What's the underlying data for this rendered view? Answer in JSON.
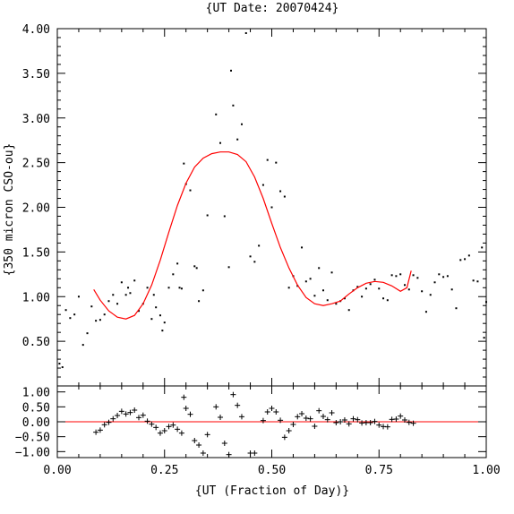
{
  "chart_data": [
    {
      "type": "scatter",
      "title": "{UT Date: 20070424}",
      "xlabel": "",
      "ylabel": "{350 micron CSO-ou}",
      "xlim": [
        0.0,
        1.0
      ],
      "ylim": [
        0.0,
        4.0
      ],
      "ytick_labels": [
        "0.50",
        "1.00",
        "1.50",
        "2.00",
        "2.50",
        "3.00",
        "3.50",
        "4.00"
      ],
      "yticks": [
        0.5,
        1.0,
        1.5,
        2.0,
        2.5,
        3.0,
        3.5,
        4.0
      ],
      "grid": false,
      "series": [
        {
          "kind": "points",
          "color": "#000000",
          "points": [
            [
              0.005,
              0.25
            ],
            [
              0.012,
              0.21
            ],
            [
              0.02,
              0.85
            ],
            [
              0.03,
              0.76
            ],
            [
              0.04,
              0.8
            ],
            [
              0.05,
              1.0
            ],
            [
              0.06,
              0.46
            ],
            [
              0.07,
              0.59
            ],
            [
              0.08,
              0.89
            ],
            [
              0.09,
              0.73
            ],
            [
              0.1,
              0.74
            ],
            [
              0.11,
              0.8
            ],
            [
              0.12,
              0.95
            ],
            [
              0.13,
              1.02
            ],
            [
              0.14,
              0.92
            ],
            [
              0.15,
              1.16
            ],
            [
              0.16,
              1.02
            ],
            [
              0.165,
              1.1
            ],
            [
              0.17,
              1.04
            ],
            [
              0.18,
              1.18
            ],
            [
              0.19,
              0.84
            ],
            [
              0.2,
              0.92
            ],
            [
              0.21,
              1.1
            ],
            [
              0.22,
              0.75
            ],
            [
              0.225,
              1.02
            ],
            [
              0.23,
              0.88
            ],
            [
              0.24,
              0.79
            ],
            [
              0.245,
              0.62
            ],
            [
              0.25,
              0.71
            ],
            [
              0.26,
              1.1
            ],
            [
              0.27,
              1.25
            ],
            [
              0.28,
              1.37
            ],
            [
              0.285,
              1.1
            ],
            [
              0.29,
              1.09
            ],
            [
              0.295,
              2.49
            ],
            [
              0.3,
              2.26
            ],
            [
              0.31,
              2.19
            ],
            [
              0.32,
              1.34
            ],
            [
              0.325,
              1.32
            ],
            [
              0.33,
              0.95
            ],
            [
              0.34,
              1.07
            ],
            [
              0.35,
              1.91
            ],
            [
              0.37,
              3.04
            ],
            [
              0.38,
              2.72
            ],
            [
              0.39,
              1.9
            ],
            [
              0.4,
              1.33
            ],
            [
              0.405,
              3.53
            ],
            [
              0.41,
              3.14
            ],
            [
              0.42,
              2.76
            ],
            [
              0.43,
              2.93
            ],
            [
              0.44,
              3.95
            ],
            [
              0.45,
              1.45
            ],
            [
              0.46,
              1.39
            ],
            [
              0.47,
              1.57
            ],
            [
              0.48,
              2.25
            ],
            [
              0.49,
              2.53
            ],
            [
              0.5,
              2.0
            ],
            [
              0.51,
              2.5
            ],
            [
              0.52,
              2.18
            ],
            [
              0.53,
              2.12
            ],
            [
              0.54,
              1.1
            ],
            [
              0.55,
              1.23
            ],
            [
              0.56,
              1.12
            ],
            [
              0.57,
              1.55
            ],
            [
              0.58,
              1.17
            ],
            [
              0.59,
              1.2
            ],
            [
              0.6,
              1.01
            ],
            [
              0.61,
              1.32
            ],
            [
              0.62,
              1.07
            ],
            [
              0.63,
              0.96
            ],
            [
              0.64,
              1.27
            ],
            [
              0.65,
              0.92
            ],
            [
              0.66,
              0.95
            ],
            [
              0.67,
              0.98
            ],
            [
              0.68,
              0.85
            ],
            [
              0.69,
              1.07
            ],
            [
              0.7,
              1.11
            ],
            [
              0.71,
              1.0
            ],
            [
              0.72,
              1.09
            ],
            [
              0.73,
              1.14
            ],
            [
              0.74,
              1.19
            ],
            [
              0.75,
              1.09
            ],
            [
              0.76,
              0.98
            ],
            [
              0.77,
              0.96
            ],
            [
              0.78,
              1.24
            ],
            [
              0.79,
              1.23
            ],
            [
              0.8,
              1.25
            ],
            [
              0.81,
              1.13
            ],
            [
              0.82,
              1.08
            ],
            [
              0.83,
              1.24
            ],
            [
              0.84,
              1.21
            ],
            [
              0.85,
              1.06
            ],
            [
              0.86,
              0.83
            ],
            [
              0.87,
              1.02
            ],
            [
              0.88,
              1.16
            ],
            [
              0.89,
              1.25
            ],
            [
              0.9,
              1.22
            ],
            [
              0.91,
              1.23
            ],
            [
              0.92,
              1.08
            ],
            [
              0.93,
              0.87
            ],
            [
              0.94,
              1.41
            ],
            [
              0.95,
              1.42
            ],
            [
              0.96,
              1.46
            ],
            [
              0.97,
              1.18
            ],
            [
              0.98,
              1.17
            ],
            [
              0.99,
              1.55
            ],
            [
              0.995,
              0.54
            ],
            [
              1.0,
              0.94
            ]
          ]
        },
        {
          "kind": "line",
          "color": "#ff0000",
          "points": [
            [
              0.085,
              1.08
            ],
            [
              0.1,
              0.96
            ],
            [
              0.12,
              0.84
            ],
            [
              0.14,
              0.77
            ],
            [
              0.16,
              0.75
            ],
            [
              0.18,
              0.79
            ],
            [
              0.2,
              0.92
            ],
            [
              0.22,
              1.13
            ],
            [
              0.24,
              1.41
            ],
            [
              0.26,
              1.72
            ],
            [
              0.28,
              2.02
            ],
            [
              0.3,
              2.27
            ],
            [
              0.32,
              2.45
            ],
            [
              0.34,
              2.55
            ],
            [
              0.36,
              2.6
            ],
            [
              0.38,
              2.62
            ],
            [
              0.4,
              2.62
            ],
            [
              0.42,
              2.59
            ],
            [
              0.44,
              2.51
            ],
            [
              0.46,
              2.34
            ],
            [
              0.48,
              2.1
            ],
            [
              0.5,
              1.82
            ],
            [
              0.52,
              1.55
            ],
            [
              0.54,
              1.32
            ],
            [
              0.56,
              1.13
            ],
            [
              0.58,
              0.99
            ],
            [
              0.6,
              0.92
            ],
            [
              0.62,
              0.9
            ],
            [
              0.64,
              0.92
            ],
            [
              0.66,
              0.95
            ],
            [
              0.68,
              1.03
            ],
            [
              0.7,
              1.1
            ],
            [
              0.72,
              1.15
            ],
            [
              0.74,
              1.17
            ],
            [
              0.76,
              1.16
            ],
            [
              0.78,
              1.12
            ],
            [
              0.8,
              1.06
            ],
            [
              0.815,
              1.1
            ],
            [
              0.825,
              1.29
            ]
          ]
        }
      ]
    },
    {
      "type": "scatter",
      "title": "",
      "xlabel": "{UT (Fraction of Day)}",
      "ylabel": "",
      "xlim": [
        0.0,
        1.0
      ],
      "ylim": [
        -1.2,
        1.2
      ],
      "xticks": [
        0.0,
        0.25,
        0.5,
        0.75,
        1.0
      ],
      "xtick_labels": [
        "0.00",
        "0.25",
        "0.50",
        "0.75",
        "1.00"
      ],
      "yticks": [
        1.0,
        0.5,
        0.0,
        -0.5,
        -1.0
      ],
      "ytick_labels": [
        "1.00",
        "0.50",
        "0.00",
        "−0.50",
        "−1.00"
      ],
      "grid": false,
      "reference_line": {
        "y": 0.0,
        "color": "#ff0000"
      },
      "series": [
        {
          "kind": "plus",
          "color": "#000000",
          "points": [
            [
              0.09,
              -0.35
            ],
            [
              0.1,
              -0.28
            ],
            [
              0.11,
              -0.1
            ],
            [
              0.12,
              -0.02
            ],
            [
              0.13,
              0.1
            ],
            [
              0.14,
              0.21
            ],
            [
              0.15,
              0.35
            ],
            [
              0.16,
              0.26
            ],
            [
              0.17,
              0.31
            ],
            [
              0.18,
              0.39
            ],
            [
              0.19,
              0.14
            ],
            [
              0.2,
              0.22
            ],
            [
              0.21,
              0.02
            ],
            [
              0.22,
              -0.08
            ],
            [
              0.23,
              -0.19
            ],
            [
              0.24,
              -0.38
            ],
            [
              0.25,
              -0.3
            ],
            [
              0.26,
              -0.16
            ],
            [
              0.27,
              -0.11
            ],
            [
              0.28,
              -0.25
            ],
            [
              0.29,
              -0.38
            ],
            [
              0.295,
              0.82
            ],
            [
              0.3,
              0.45
            ],
            [
              0.31,
              0.25
            ],
            [
              0.32,
              -0.63
            ],
            [
              0.33,
              -0.78
            ],
            [
              0.34,
              -1.05
            ],
            [
              0.35,
              -0.43
            ],
            [
              0.37,
              0.5
            ],
            [
              0.38,
              0.15
            ],
            [
              0.39,
              -0.72
            ],
            [
              0.4,
              -1.1
            ],
            [
              0.41,
              0.91
            ],
            [
              0.42,
              0.55
            ],
            [
              0.43,
              0.17
            ],
            [
              0.45,
              -1.05
            ],
            [
              0.46,
              -1.05
            ],
            [
              0.48,
              0.04
            ],
            [
              0.49,
              0.33
            ],
            [
              0.5,
              0.45
            ],
            [
              0.51,
              0.33
            ],
            [
              0.52,
              0.05
            ],
            [
              0.53,
              -0.52
            ],
            [
              0.54,
              -0.3
            ],
            [
              0.55,
              -0.09
            ],
            [
              0.56,
              0.17
            ],
            [
              0.57,
              0.27
            ],
            [
              0.58,
              0.12
            ],
            [
              0.59,
              0.1
            ],
            [
              0.6,
              -0.15
            ],
            [
              0.61,
              0.37
            ],
            [
              0.62,
              0.18
            ],
            [
              0.63,
              0.07
            ],
            [
              0.64,
              0.3
            ],
            [
              0.65,
              -0.03
            ],
            [
              0.66,
              0.0
            ],
            [
              0.67,
              0.06
            ],
            [
              0.68,
              -0.07
            ],
            [
              0.69,
              0.1
            ],
            [
              0.7,
              0.07
            ],
            [
              0.71,
              -0.04
            ],
            [
              0.72,
              -0.03
            ],
            [
              0.73,
              -0.03
            ],
            [
              0.74,
              0.01
            ],
            [
              0.75,
              -0.11
            ],
            [
              0.76,
              -0.16
            ],
            [
              0.77,
              -0.17
            ],
            [
              0.78,
              0.08
            ],
            [
              0.79,
              0.09
            ],
            [
              0.8,
              0.19
            ],
            [
              0.81,
              0.06
            ],
            [
              0.82,
              -0.02
            ],
            [
              0.83,
              -0.05
            ]
          ]
        }
      ]
    }
  ]
}
